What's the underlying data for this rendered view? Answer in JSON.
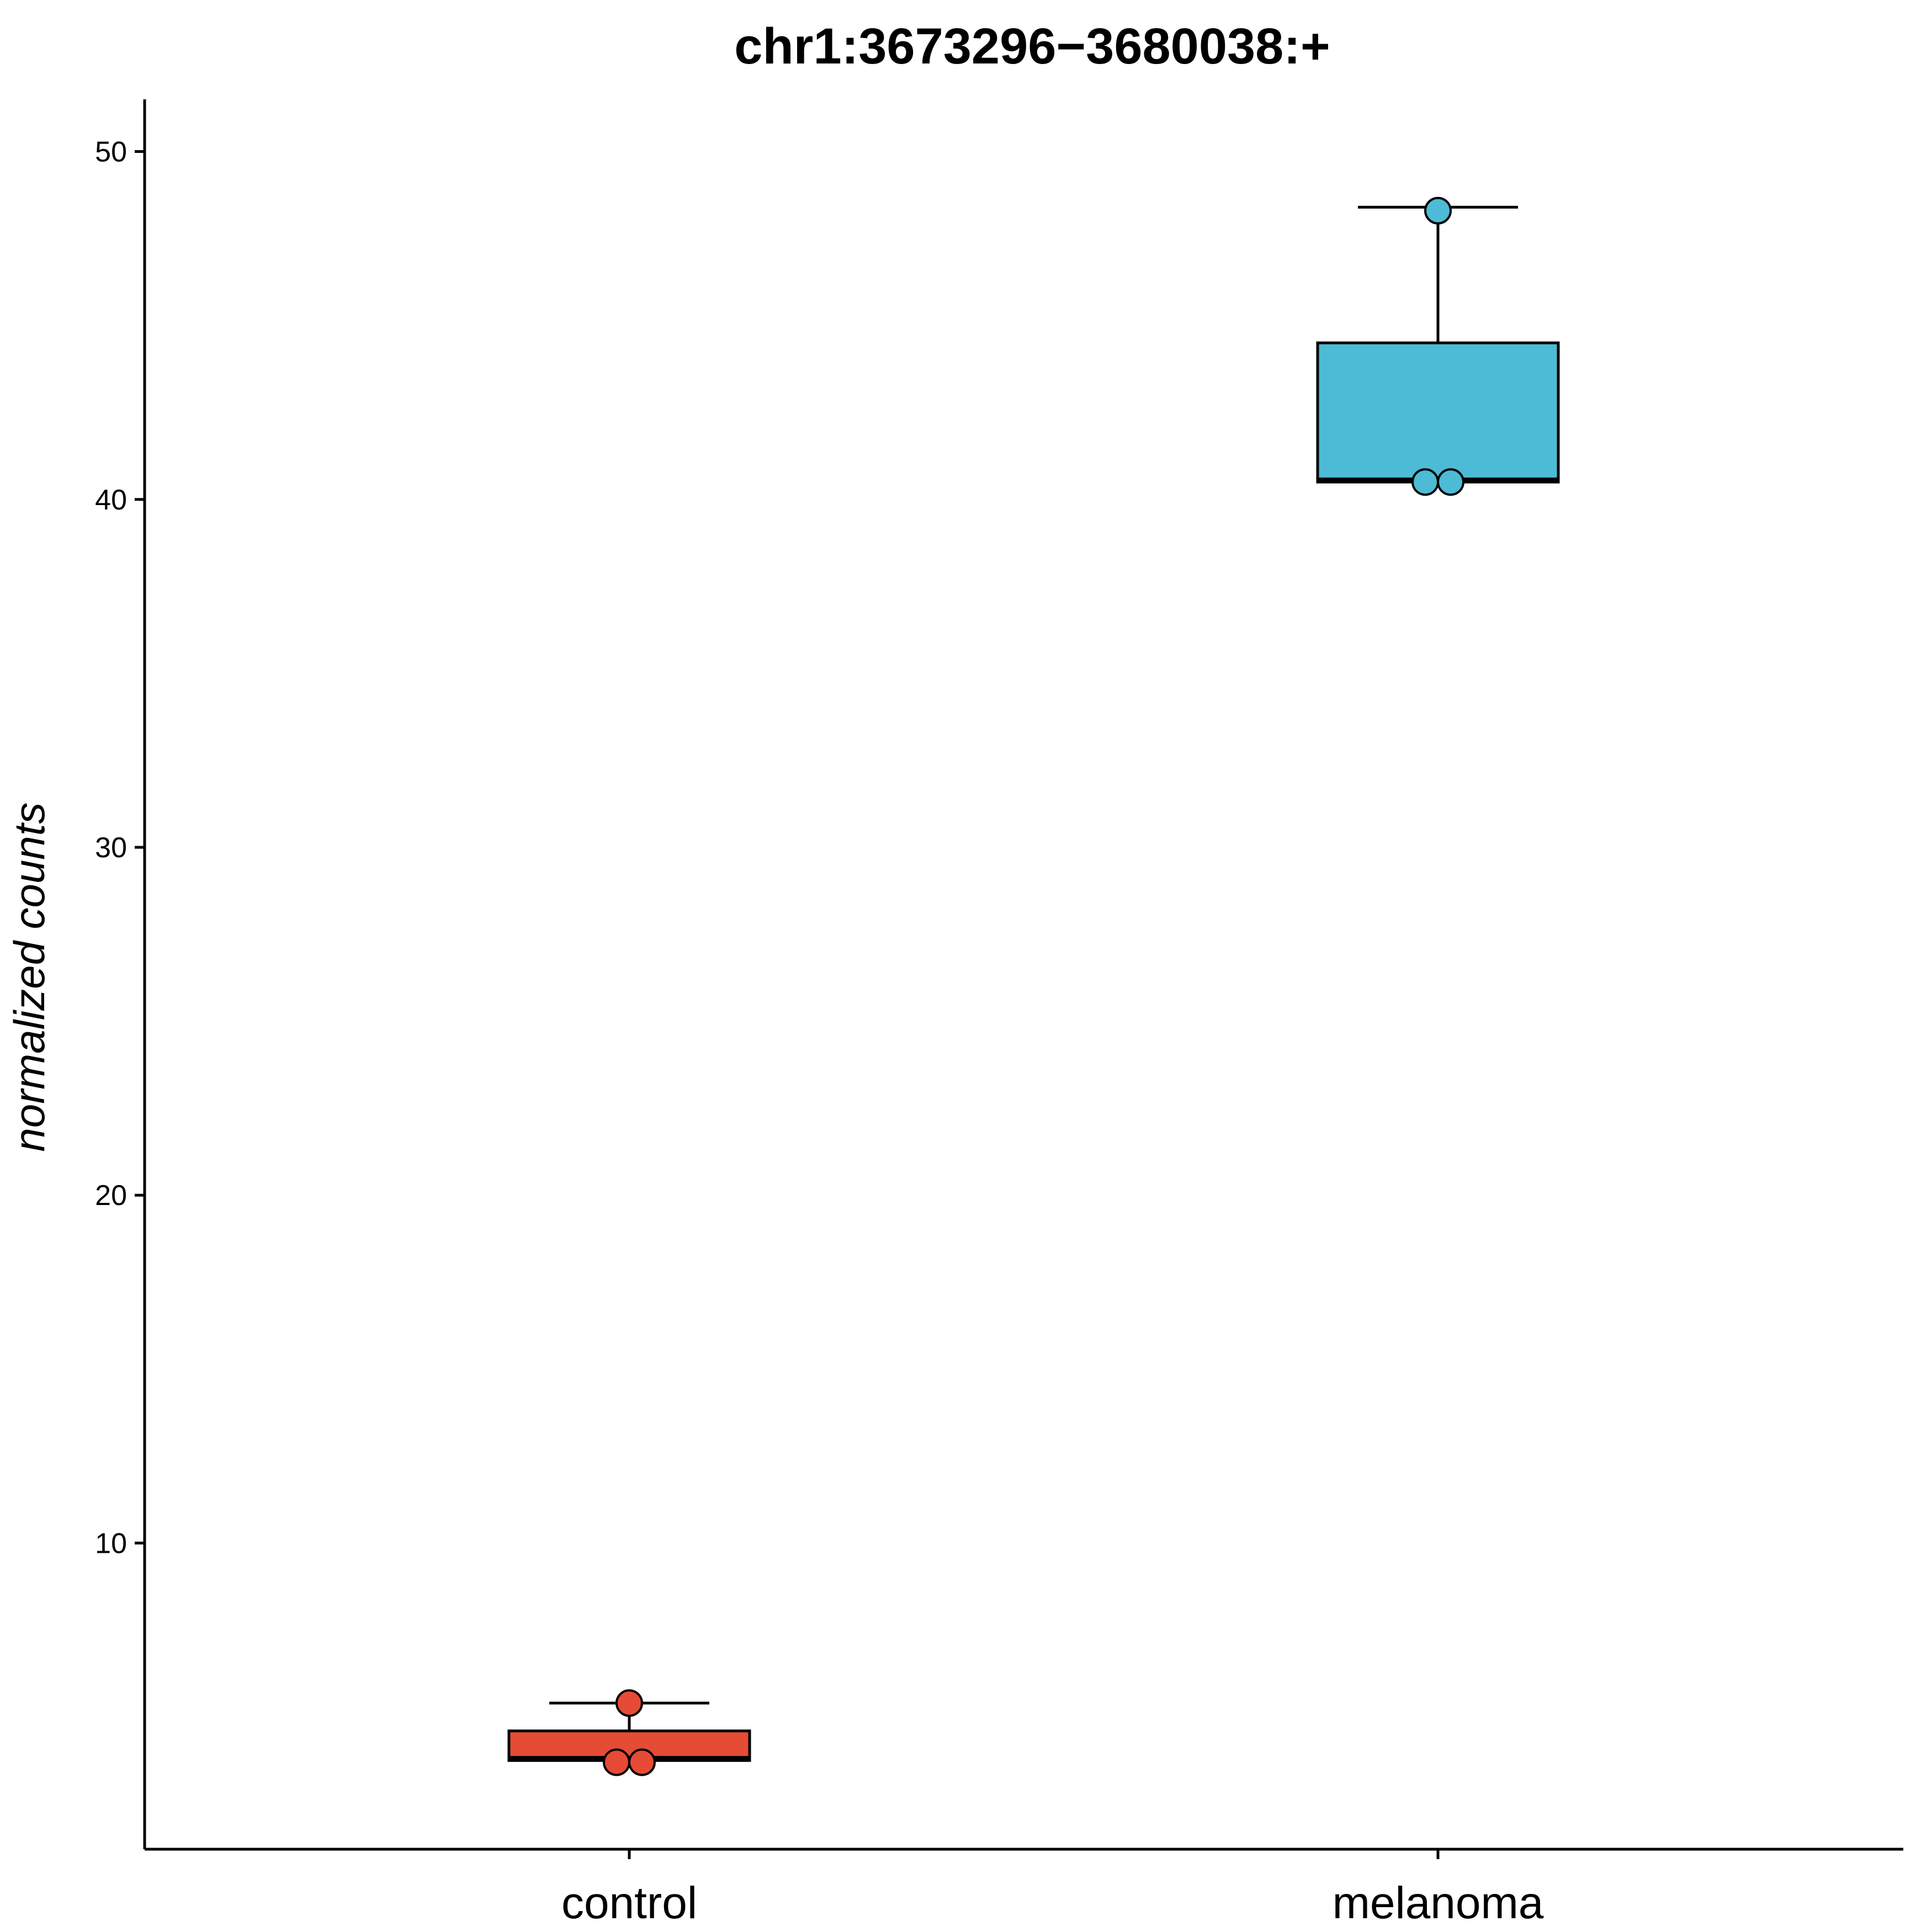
{
  "chart_data": {
    "type": "box",
    "title": "chr1:3673296−3680038:+",
    "xlabel": "",
    "ylabel": "normalized counts",
    "categories": [
      "control",
      "melanoma"
    ],
    "yticks": [
      10,
      20,
      30,
      40,
      50
    ],
    "ylim": [
      1.2,
      51.5
    ],
    "grid": false,
    "legend": "none",
    "colors": [
      "#E64B35",
      "#4DBBD5"
    ],
    "boxes": [
      {
        "category": "control",
        "min": 3.7,
        "q1": 3.75,
        "median": 3.8,
        "q3": 4.6,
        "max": 5.4,
        "points": [
          3.7,
          3.7,
          5.4
        ]
      },
      {
        "category": "melanoma",
        "min": 40.5,
        "q1": 40.5,
        "median": 40.55,
        "q3": 44.5,
        "max": 48.4,
        "points": [
          40.5,
          40.5,
          48.3
        ]
      }
    ]
  }
}
